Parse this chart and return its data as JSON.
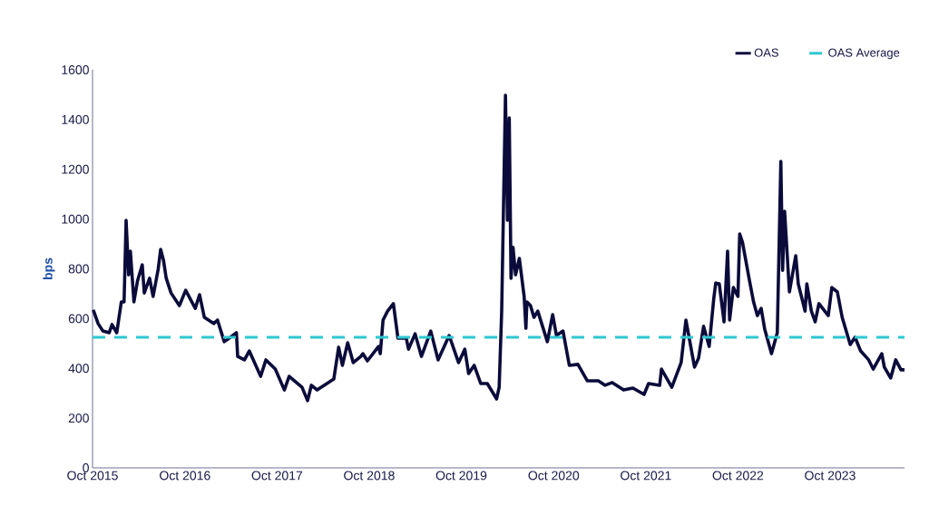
{
  "chart_data": {
    "type": "line",
    "ylabel": "bps",
    "legend": "top right",
    "xlim": [
      "2015-10-01",
      "2024-07-22"
    ],
    "ylim": [
      0,
      1600
    ],
    "yticks": [
      0,
      200,
      400,
      600,
      800,
      1000,
      1200,
      1400,
      1600
    ],
    "xticks": [
      {
        "value": "2015-10",
        "label": "Oct 2015"
      },
      {
        "value": "2016-10",
        "label": "Oct 2016"
      },
      {
        "value": "2017-10",
        "label": "Oct 2017"
      },
      {
        "value": "2018-10",
        "label": "Oct 2018"
      },
      {
        "value": "2019-10",
        "label": "Oct 2019"
      },
      {
        "value": "2020-10",
        "label": "Oct 2020"
      },
      {
        "value": "2021-10",
        "label": "Oct 2021"
      },
      {
        "value": "2022-10",
        "label": "Oct 2022"
      },
      {
        "value": "2023-10",
        "label": "Oct 2023"
      }
    ],
    "series": [
      {
        "name": "OAS",
        "color": "#0b0b3b",
        "line_style": "solid",
        "x": [
          "2015-10-04",
          "2015-10-23",
          "2015-11-11",
          "2015-12-06",
          "2015-12-17",
          "2016-01-05",
          "2016-01-23",
          "2016-02-03",
          "2016-02-11",
          "2016-02-21",
          "2016-02-28",
          "2016-03-13",
          "2016-03-27",
          "2016-04-15",
          "2016-04-23",
          "2016-05-14",
          "2016-05-28",
          "2016-06-17",
          "2016-06-27",
          "2016-07-08",
          "2016-07-19",
          "2016-08-07",
          "2016-09-09",
          "2016-10-04",
          "2016-11-11",
          "2016-11-28",
          "2016-12-17",
          "2017-01-23",
          "2017-02-07",
          "2017-03-06",
          "2017-04-23",
          "2017-04-28",
          "2017-05-25",
          "2017-06-13",
          "2017-07-28",
          "2017-08-18",
          "2017-09-24",
          "2017-10-30",
          "2017-11-18",
          "2018-01-08",
          "2018-01-30",
          "2018-02-14",
          "2018-03-09",
          "2018-05-14",
          "2018-06-02",
          "2018-06-17",
          "2018-07-08",
          "2018-07-30",
          "2018-08-29",
          "2018-09-06",
          "2018-09-24",
          "2018-11-07",
          "2018-11-14",
          "2018-11-25",
          "2018-12-13",
          "2019-01-05",
          "2019-01-23",
          "2019-02-25",
          "2019-03-06",
          "2019-04-01",
          "2019-04-26",
          "2019-06-02",
          "2019-07-01",
          "2019-08-14",
          "2019-09-20",
          "2019-10-15",
          "2019-10-30",
          "2019-11-21",
          "2019-12-17",
          "2020-01-12",
          "2020-02-18",
          "2020-02-28",
          "2020-03-09",
          "2020-03-24",
          "2020-04-01",
          "2020-04-08",
          "2020-04-15",
          "2020-04-23",
          "2020-05-03",
          "2020-05-18",
          "2020-06-06",
          "2020-06-13",
          "2020-06-17",
          "2020-07-01",
          "2020-07-15",
          "2020-07-30",
          "2020-09-06",
          "2020-09-27",
          "2020-10-12",
          "2020-11-07",
          "2020-12-02",
          "2021-01-05",
          "2021-02-11",
          "2021-03-27",
          "2021-04-23",
          "2021-05-21",
          "2021-07-05",
          "2021-08-11",
          "2021-09-24",
          "2021-10-12",
          "2021-11-25",
          "2021-12-02",
          "2022-01-12",
          "2022-02-18",
          "2022-03-09",
          "2022-04-12",
          "2022-04-28",
          "2022-05-18",
          "2022-06-09",
          "2022-06-27",
          "2022-07-05",
          "2022-07-19",
          "2022-08-07",
          "2022-08-21",
          "2022-08-29",
          "2022-09-13",
          "2022-10-01",
          "2022-10-08",
          "2022-10-19",
          "2022-11-14",
          "2022-12-02",
          "2022-12-17",
          "2023-01-01",
          "2023-01-15",
          "2023-02-11",
          "2023-03-06",
          "2023-03-20",
          "2023-03-27",
          "2023-04-04",
          "2023-04-23",
          "2023-05-18",
          "2023-05-28",
          "2023-06-24",
          "2023-07-01",
          "2023-07-19",
          "2023-08-03",
          "2023-08-18",
          "2023-09-24",
          "2023-10-08",
          "2023-10-30",
          "2023-11-18",
          "2023-12-20",
          "2024-01-08",
          "2024-01-30",
          "2024-03-02",
          "2024-03-20",
          "2024-04-23",
          "2024-05-03",
          "2024-05-28",
          "2024-06-17",
          "2024-07-08",
          "2024-07-22"
        ],
        "values": [
          635,
          580,
          550,
          543,
          576,
          543,
          667,
          667,
          995,
          776,
          871,
          667,
          751,
          816,
          703,
          762,
          689,
          798,
          878,
          835,
          762,
          703,
          652,
          714,
          641,
          696,
          605,
          580,
          594,
          507,
          543,
          448,
          434,
          470,
          368,
          434,
          397,
          313,
          368,
          324,
          270,
          332,
          313,
          357,
          485,
          412,
          503,
          423,
          448,
          459,
          430,
          488,
          459,
          594,
          630,
          660,
          521,
          521,
          477,
          539,
          448,
          550,
          434,
          532,
          423,
          477,
          379,
          412,
          339,
          339,
          277,
          324,
          630,
          1498,
          995,
          1407,
          762,
          886,
          776,
          842,
          689,
          561,
          667,
          652,
          605,
          630,
          507,
          616,
          532,
          550,
          412,
          416,
          350,
          350,
          332,
          343,
          313,
          321,
          295,
          339,
          332,
          397,
          324,
          423,
          594,
          405,
          441,
          569,
          488,
          678,
          743,
          740,
          587,
          871,
          594,
          725,
          689,
          940,
          907,
          762,
          667,
          612,
          641,
          558,
          459,
          543,
          1232,
          794,
          1031,
          707,
          853,
          740,
          630,
          740,
          630,
          587,
          660,
          612,
          725,
          707,
          605,
          496,
          525,
          470,
          434,
          397,
          459,
          405,
          361,
          434,
          394,
          394
        ]
      }
    ],
    "ref_lines": [
      {
        "axis": "y",
        "value": 525,
        "label": "OAS Average",
        "color": "#2ec8d0",
        "line_style": "dashed"
      }
    ]
  }
}
